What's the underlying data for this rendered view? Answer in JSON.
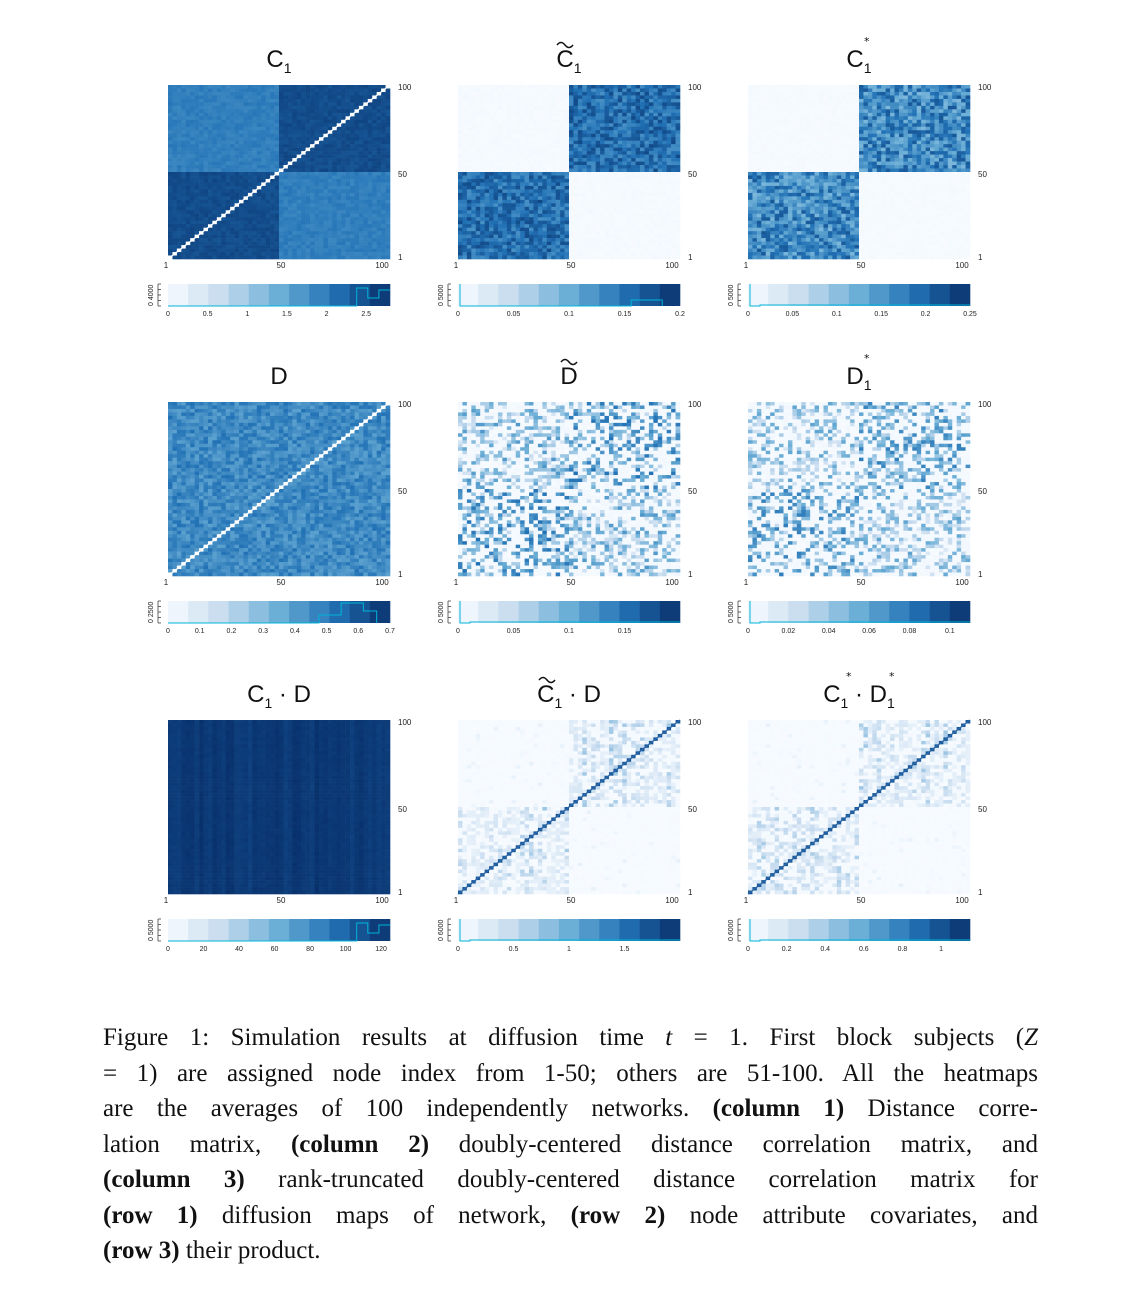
{
  "chart_data": {
    "type": "heatmap",
    "row_labels": [
      "row 1: diffusion maps of network",
      "row 2: node attribute covariates",
      "row 3: their product"
    ],
    "column_labels": [
      "Distance correlation matrix",
      "doubly-centered distance correlation matrix",
      "rank-truncated doubly-centered distance correlation matrix"
    ],
    "panels": [
      {
        "title": "C",
        "sub": "1",
        "deco": "none",
        "pattern": "c1",
        "yticks": [
          "100",
          "50",
          "1"
        ],
        "xticks": [
          "1",
          "50",
          "100"
        ],
        "legend_ticks": [
          "0",
          "0.5",
          "1",
          "1.5",
          "2",
          "2.5"
        ],
        "legend_max": 2.8,
        "hist_label": "0 4000"
      },
      {
        "title": "C",
        "sub": "1",
        "deco": "tilde",
        "pattern": "c1t",
        "yticks": [
          "100",
          "50",
          "1"
        ],
        "xticks": [
          "1",
          "50",
          "100"
        ],
        "legend_ticks": [
          "0",
          "0.05",
          "0.1",
          "0.15",
          "0.2"
        ],
        "legend_max": 0.2,
        "hist_label": "0 5000"
      },
      {
        "title": "C",
        "sub": "1",
        "deco": "star",
        "pattern": "c1s",
        "yticks": [
          "100",
          "50",
          "1"
        ],
        "xticks": [
          "1",
          "50",
          "100"
        ],
        "legend_ticks": [
          "0",
          "0.05",
          "0.1",
          "0.15",
          "0.2",
          "0.25"
        ],
        "legend_max": 0.25,
        "hist_label": "0 5000"
      },
      {
        "title": "D",
        "sub": "",
        "deco": "none",
        "pattern": "d",
        "yticks": [
          "100",
          "50",
          "1"
        ],
        "xticks": [
          "1",
          "50",
          "100"
        ],
        "legend_ticks": [
          "0",
          "0.1",
          "0.2",
          "0.3",
          "0.4",
          "0.5",
          "0.6",
          "0.7"
        ],
        "legend_max": 0.7,
        "hist_label": "0 2500"
      },
      {
        "title": "D",
        "sub": "",
        "deco": "tilde",
        "pattern": "dt",
        "yticks": [
          "100",
          "50",
          "1"
        ],
        "xticks": [
          "1",
          "50",
          "100"
        ],
        "legend_ticks": [
          "0",
          "0.05",
          "0.1",
          "0.15"
        ],
        "legend_max": 0.2,
        "hist_label": "0 5000"
      },
      {
        "title": "D",
        "sub": "1",
        "deco": "star",
        "pattern": "ds",
        "yticks": [
          "100",
          "50",
          "1"
        ],
        "xticks": [
          "1",
          "50",
          "100"
        ],
        "legend_ticks": [
          "0",
          "0.02",
          "0.04",
          "0.06",
          "0.08",
          "0.1"
        ],
        "legend_max": 0.11,
        "hist_label": "0 5000"
      },
      {
        "title": "C",
        "sub": "1",
        "deco": "none",
        "suffix": "· D",
        "pattern": "cd",
        "yticks": [
          "100",
          "50",
          "1"
        ],
        "xticks": [
          "1",
          "50",
          "100"
        ],
        "legend_ticks": [
          "0",
          "20",
          "40",
          "60",
          "80",
          "100",
          "120"
        ],
        "legend_max": 125,
        "hist_label": "0 5000"
      },
      {
        "title": "C",
        "sub": "1",
        "deco": "tilde",
        "suffix": "· D",
        "pattern": "cdt",
        "yticks": [
          "100",
          "50",
          "1"
        ],
        "xticks": [
          "1",
          "50",
          "100"
        ],
        "legend_ticks": [
          "0",
          "0.5",
          "1",
          "1.5"
        ],
        "legend_max": 2.0,
        "hist_label": "0 6000"
      },
      {
        "title": "C",
        "sub": "1",
        "deco": "star",
        "suffix": "· D",
        "suffix_sub": "1",
        "suffix_deco": "star",
        "pattern": "cds",
        "yticks": [
          "100",
          "50",
          "1"
        ],
        "xticks": [
          "1",
          "50",
          "100"
        ],
        "legend_ticks": [
          "0",
          "0.2",
          "0.4",
          "0.6",
          "0.8",
          "1"
        ],
        "legend_max": 1.15,
        "hist_label": "0 6000"
      }
    ],
    "colors": {
      "low": "#f3f9fe",
      "high": "#08306b",
      "mid": "#2171b5",
      "diag": "#ffffff",
      "hist": "#00b4d8"
    }
  },
  "caption": {
    "lines": [
      [
        {
          "t": "Figure 1: Simulation results at diffusion time "
        },
        {
          "t": "t",
          "i": true
        },
        {
          "t": " = 1. First block subjects ("
        },
        {
          "t": "Z",
          "i": true
        }
      ],
      [
        {
          "t": "= 1) are assigned node index from 1-50; others are 51-100. All the heatmaps"
        }
      ],
      [
        {
          "t": "are the averages of 100 independently networks. "
        },
        {
          "t": "(column 1)",
          "b": true
        },
        {
          "t": " Distance corre-"
        }
      ],
      [
        {
          "t": "lation matrix, "
        },
        {
          "t": "(column 2)",
          "b": true
        },
        {
          "t": " doubly-centered distance correlation matrix, and"
        }
      ],
      [
        {
          "t": "(column 3)",
          "b": true
        },
        {
          "t": " rank-truncated doubly-centered distance correlation matrix for"
        }
      ],
      [
        {
          "t": "(row 1)",
          "b": true
        },
        {
          "t": " diffusion maps of network, "
        },
        {
          "t": "(row 2)",
          "b": true
        },
        {
          "t": " node attribute covariates, and"
        }
      ],
      [
        {
          "t": "(row 3)",
          "b": true
        },
        {
          "t": " their product."
        }
      ]
    ]
  }
}
